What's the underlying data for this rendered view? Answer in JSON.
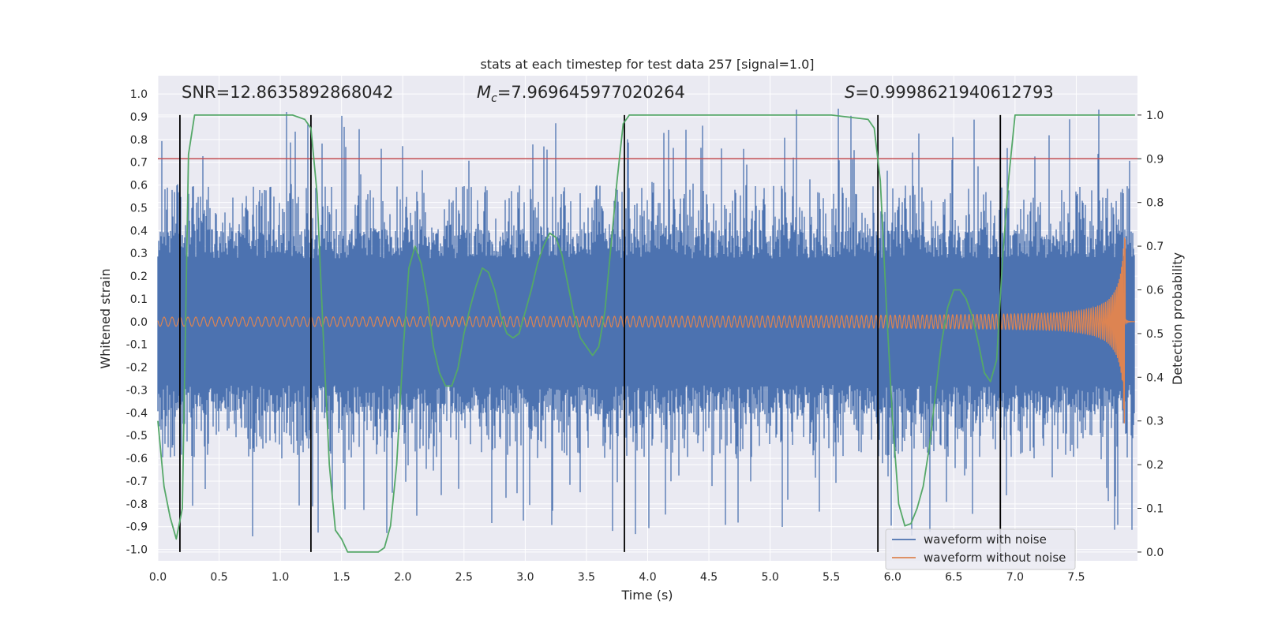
{
  "chart_data": {
    "type": "line",
    "title": "stats at each timestep for test data 257 [signal=1.0]",
    "xlabel": "Time (s)",
    "ylabel": "Whitened strain",
    "y2label": "Detection probability",
    "xlim": [
      0.0,
      8.0
    ],
    "ylim": [
      -1.05,
      1.08
    ],
    "y2lim": [
      -0.02,
      1.09
    ],
    "x_ticks": [
      "0.0",
      "0.5",
      "1.0",
      "1.5",
      "2.0",
      "2.5",
      "3.0",
      "3.5",
      "4.0",
      "4.5",
      "5.0",
      "5.5",
      "6.0",
      "6.5",
      "7.0",
      "7.5"
    ],
    "y_ticks": [
      "1.0",
      "0.9",
      "0.8",
      "0.7",
      "0.6",
      "0.5",
      "0.4",
      "0.3",
      "0.2",
      "0.1",
      "0.0",
      "-0.1",
      "-0.2",
      "-0.3",
      "-0.4",
      "-0.5",
      "-0.6",
      "-0.7",
      "-0.8",
      "-0.9",
      "-1.0"
    ],
    "y2_ticks": [
      "1.0",
      "0.9",
      "0.8",
      "0.7",
      "0.6",
      "0.5",
      "0.4",
      "0.3",
      "0.2",
      "0.1",
      "0.0"
    ],
    "grid": true,
    "legend_position": "lower-right",
    "annotations": {
      "snr": "SNR=12.8635892868042",
      "mc_symbol": "M",
      "mc_subscript": "c",
      "mc_value": "=7.969645977020264",
      "s_symbol": "S",
      "s_value": "=0.9998621940612793"
    },
    "threshold": 0.9,
    "event_lines_x": [
      0.18,
      1.25,
      3.81,
      5.88,
      6.88
    ],
    "series": [
      {
        "name": "waveform with noise",
        "color": "#4c72b0",
        "envelope_abs": 0.37,
        "spike_max": 1.0,
        "x_range": [
          0.0,
          7.98
        ]
      },
      {
        "name": "waveform without noise",
        "color": "#dd8452",
        "chirp_start_amp": 0.02,
        "merger_time": 7.9,
        "merger_peak_upper": 0.4,
        "merger_peak_lower": -0.56,
        "x_range": [
          0.0,
          7.98
        ]
      },
      {
        "name": "detection probability",
        "color": "#55a868",
        "axis": "right",
        "x": [
          0.0,
          0.05,
          0.1,
          0.15,
          0.2,
          0.25,
          0.3,
          0.35,
          0.4,
          0.5,
          0.6,
          0.7,
          0.8,
          0.9,
          1.0,
          1.1,
          1.2,
          1.25,
          1.3,
          1.35,
          1.4,
          1.45,
          1.5,
          1.55,
          1.6,
          1.7,
          1.8,
          1.85,
          1.9,
          1.95,
          2.0,
          2.05,
          2.1,
          2.15,
          2.2,
          2.25,
          2.3,
          2.35,
          2.4,
          2.45,
          2.5,
          2.55,
          2.6,
          2.65,
          2.7,
          2.75,
          2.8,
          2.85,
          2.9,
          2.95,
          3.0,
          3.05,
          3.1,
          3.15,
          3.2,
          3.25,
          3.3,
          3.35,
          3.4,
          3.45,
          3.5,
          3.55,
          3.6,
          3.65,
          3.7,
          3.75,
          3.8,
          3.85,
          3.9,
          4.0,
          4.5,
          5.0,
          5.5,
          5.8,
          5.85,
          5.9,
          5.95,
          6.0,
          6.05,
          6.1,
          6.15,
          6.2,
          6.25,
          6.3,
          6.35,
          6.4,
          6.45,
          6.5,
          6.55,
          6.6,
          6.65,
          6.7,
          6.75,
          6.8,
          6.85,
          6.9,
          6.95,
          7.0,
          7.5,
          7.98
        ],
        "values": [
          0.3,
          0.15,
          0.08,
          0.03,
          0.1,
          0.91,
          1.0,
          1.0,
          1.0,
          1.0,
          1.0,
          1.0,
          1.0,
          1.0,
          1.0,
          1.0,
          0.99,
          0.97,
          0.82,
          0.5,
          0.2,
          0.05,
          0.03,
          0.0,
          0.0,
          0.0,
          0.0,
          0.01,
          0.06,
          0.2,
          0.45,
          0.65,
          0.7,
          0.66,
          0.58,
          0.47,
          0.41,
          0.38,
          0.38,
          0.42,
          0.5,
          0.56,
          0.61,
          0.65,
          0.64,
          0.6,
          0.54,
          0.5,
          0.49,
          0.5,
          0.55,
          0.6,
          0.66,
          0.7,
          0.73,
          0.72,
          0.68,
          0.61,
          0.54,
          0.49,
          0.47,
          0.45,
          0.47,
          0.55,
          0.7,
          0.85,
          0.98,
          1.0,
          1.0,
          1.0,
          1.0,
          1.0,
          1.0,
          0.99,
          0.97,
          0.85,
          0.56,
          0.3,
          0.11,
          0.06,
          0.065,
          0.1,
          0.15,
          0.24,
          0.36,
          0.48,
          0.56,
          0.6,
          0.6,
          0.58,
          0.54,
          0.48,
          0.41,
          0.39,
          0.44,
          0.68,
          0.86,
          1.0,
          1.0,
          1.0
        ]
      }
    ]
  }
}
